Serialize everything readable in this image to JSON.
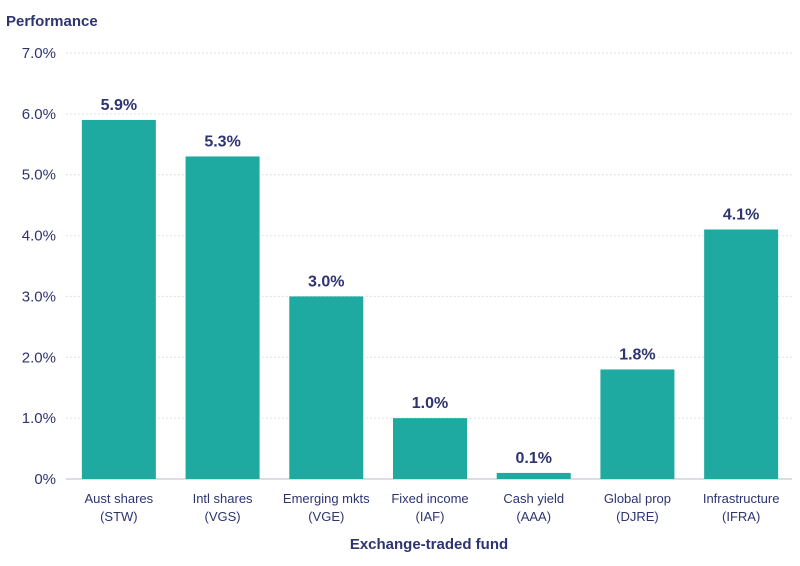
{
  "chart_data": {
    "type": "bar",
    "ylabel": "Performance",
    "xlabel": "Exchange-traded fund",
    "ylim": [
      0,
      7
    ],
    "yticks": [
      "0%",
      "1.0%",
      "2.0%",
      "3.0%",
      "4.0%",
      "5.0%",
      "6.0%",
      "7.0%"
    ],
    "categories": [
      {
        "line1": "Aust shares",
        "line2": "(STW)"
      },
      {
        "line1": "Intl shares",
        "line2": "(VGS)"
      },
      {
        "line1": "Emerging mkts",
        "line2": "(VGE)"
      },
      {
        "line1": "Fixed income",
        "line2": "(IAF)"
      },
      {
        "line1": "Cash yield",
        "line2": "(AAA)"
      },
      {
        "line1": "Global prop",
        "line2": "(DJRE)"
      },
      {
        "line1": "Infrastructure",
        "line2": "(IFRA)"
      }
    ],
    "values": [
      5.9,
      5.3,
      3.0,
      1.0,
      0.1,
      1.8,
      4.1
    ],
    "value_labels": [
      "5.9%",
      "5.3%",
      "3.0%",
      "1.0%",
      "0.1%",
      "1.8%",
      "4.1%"
    ],
    "grid": true,
    "colors": {
      "bar": "#1eaaa0",
      "text": "#2d3470",
      "grid": "#d4d7de",
      "axis": "#b8bcc6"
    }
  }
}
